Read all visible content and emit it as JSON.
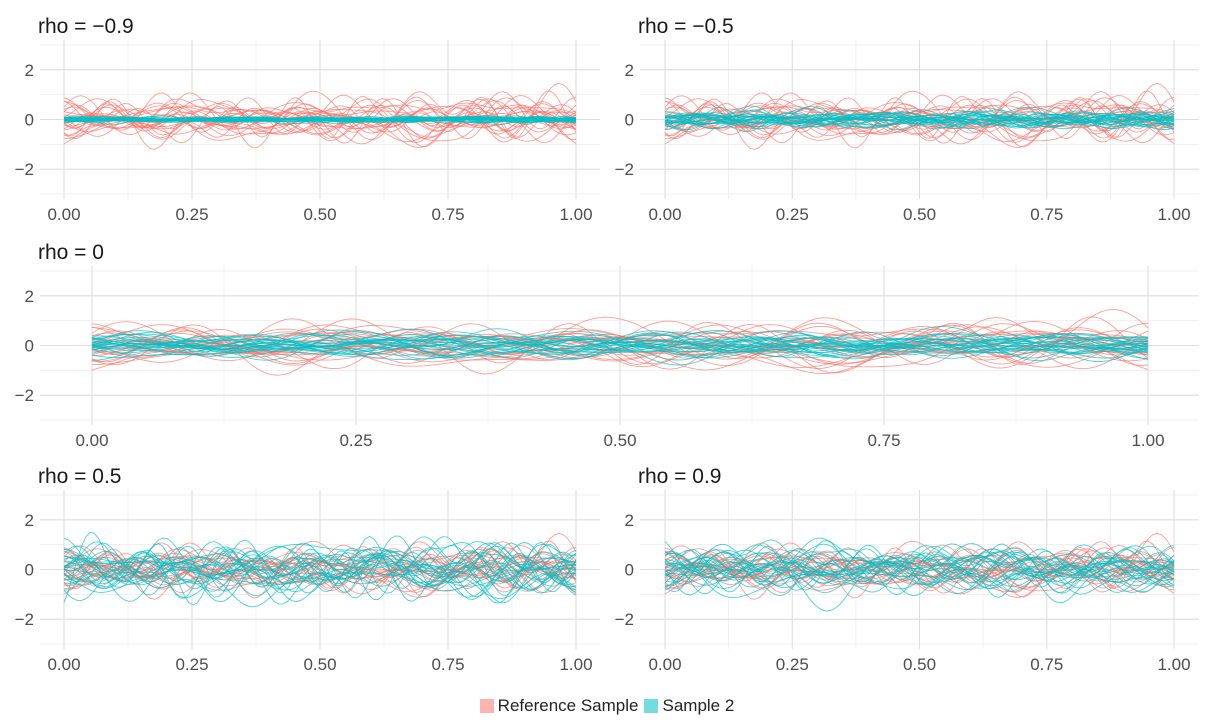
{
  "chart_data": [
    {
      "type": "line",
      "title": "rho = −0.9",
      "x_range": [
        0,
        1
      ],
      "ylim": [
        -3.2,
        3.2
      ],
      "x_ticks": [
        "0.00",
        "0.25",
        "0.50",
        "0.75",
        "1.00"
      ],
      "y_ticks": [
        "−2",
        "0",
        "2"
      ],
      "reference_curves": 25,
      "reference_amplitude": 0.85,
      "sample2_curves": 25,
      "sample2_amplitude": 0.12,
      "x_points": 120
    },
    {
      "type": "line",
      "title": "rho = −0.5",
      "x_range": [
        0,
        1
      ],
      "ylim": [
        -3.2,
        3.2
      ],
      "x_ticks": [
        "0.00",
        "0.25",
        "0.50",
        "0.75",
        "1.00"
      ],
      "y_ticks": [
        "−2",
        "0",
        "2"
      ],
      "reference_curves": 25,
      "reference_amplitude": 0.85,
      "sample2_curves": 25,
      "sample2_amplitude": 0.33,
      "x_points": 120
    },
    {
      "type": "line",
      "title": "rho = 0",
      "x_range": [
        0,
        1
      ],
      "ylim": [
        -3.2,
        3.2
      ],
      "x_ticks": [
        "0.00",
        "0.25",
        "0.50",
        "0.75",
        "1.00"
      ],
      "y_ticks": [
        "−2",
        "0",
        "2"
      ],
      "reference_curves": 25,
      "reference_amplitude": 0.85,
      "sample2_curves": 25,
      "sample2_amplitude": 0.48,
      "x_points": 160
    },
    {
      "type": "line",
      "title": "rho = 0.5",
      "x_range": [
        0,
        1
      ],
      "ylim": [
        -3.2,
        3.2
      ],
      "x_ticks": [
        "0.00",
        "0.25",
        "0.50",
        "0.75",
        "1.00"
      ],
      "y_ticks": [
        "−2",
        "0",
        "2"
      ],
      "reference_curves": 25,
      "reference_amplitude": 0.85,
      "sample2_curves": 25,
      "sample2_amplitude": 1.05,
      "x_points": 120
    },
    {
      "type": "line",
      "title": "rho = 0.9",
      "x_range": [
        0,
        1
      ],
      "ylim": [
        -3.2,
        3.2
      ],
      "x_ticks": [
        "0.00",
        "0.25",
        "0.50",
        "0.75",
        "1.00"
      ],
      "y_ticks": [
        "−2",
        "0",
        "2"
      ],
      "reference_curves": 25,
      "reference_amplitude": 0.85,
      "sample2_curves": 25,
      "sample2_amplitude": 0.95,
      "x_points": 120
    }
  ],
  "legend": [
    {
      "label": "Reference Sample",
      "color": "#F8766D"
    },
    {
      "label": "Sample 2",
      "color": "#00BFC4"
    }
  ],
  "colors": {
    "reference": "#F8766D",
    "sample2": "#00BFC4",
    "grid": "#EBEBEB",
    "text": "#1A1A1A",
    "tick_text": "#4D4D4D"
  },
  "y_min": -3.2,
  "y_max": 3.2
}
